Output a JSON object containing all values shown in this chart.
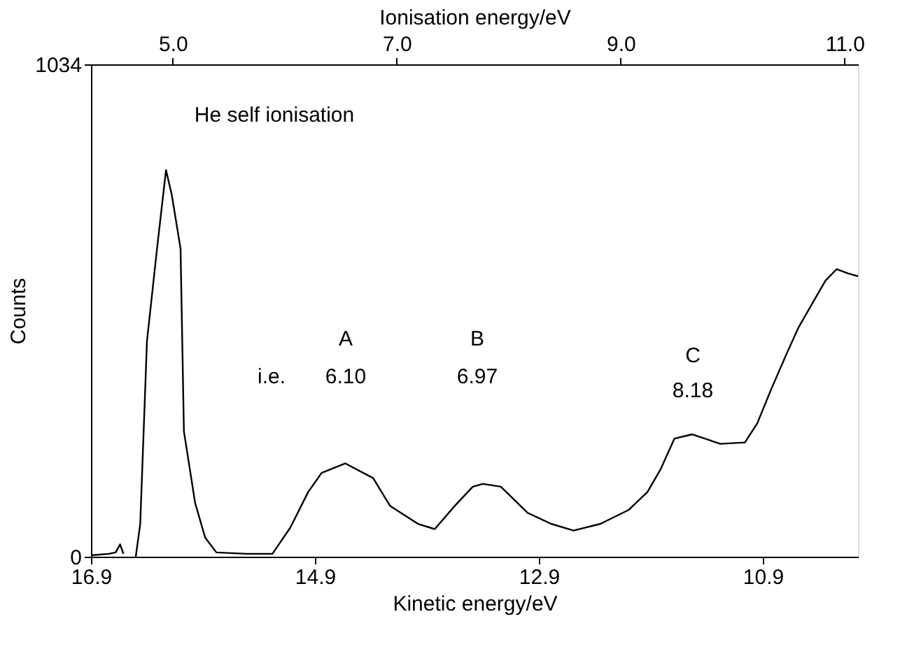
{
  "chart_data": {
    "type": "line",
    "xlabel": "Kinetic energy/eV",
    "ylabel": "Counts",
    "x2label": "Ionisation energy/eV",
    "x": [
      16.9,
      16.74,
      16.68,
      16.64,
      16.61,
      16.54,
      16.5,
      16.46,
      16.4,
      16.31,
      16.23,
      16.18,
      16.1,
      16.07,
      15.97,
      15.88,
      15.78,
      15.51,
      15.28,
      15.12,
      14.96,
      14.84,
      14.63,
      14.38,
      14.23,
      13.98,
      13.83,
      13.65,
      13.49,
      13.4,
      13.24,
      13.0,
      12.79,
      12.59,
      12.35,
      12.1,
      11.93,
      11.81,
      11.69,
      11.53,
      11.28,
      11.06,
      10.95,
      10.83,
      10.69,
      10.58,
      10.46,
      10.34,
      10.24,
      10.14,
      10.05
    ],
    "series": [
      {
        "color": "#000000",
        "values": [
          3,
          6,
          9,
          26,
          6,
          null,
          0,
          69,
          453,
          647,
          812,
          762,
          647,
          263,
          113,
          40,
          9,
          6,
          6,
          61,
          136,
          176,
          196,
          165,
          107,
          69,
          58,
          107,
          147,
          153,
          147,
          92,
          69,
          55,
          69,
          98,
          136,
          185,
          248,
          257,
          237,
          240,
          280,
          349,
          425,
          482,
          531,
          580,
          604,
          595,
          589
        ]
      }
    ],
    "xlim": [
      16.9,
      10.05
    ],
    "xticks": [
      16.9,
      14.9,
      12.9,
      10.9
    ],
    "x2lim": [
      4.27,
      11.12
    ],
    "x2ticks": [
      {
        "value": 5,
        "label": "5.0"
      },
      {
        "value": 7,
        "label": "7.0"
      },
      {
        "value": 9,
        "label": "9.0"
      },
      {
        "value": 11,
        "label": "11.0"
      }
    ],
    "ylim": [
      0,
      1034
    ],
    "yticks": [
      0,
      1034
    ],
    "marker": "none",
    "line_style": "solid",
    "annotations": [
      "He self ionisation",
      "i.e.",
      "A",
      "6.10",
      "B",
      "6.97",
      "C",
      "8.18"
    ]
  }
}
